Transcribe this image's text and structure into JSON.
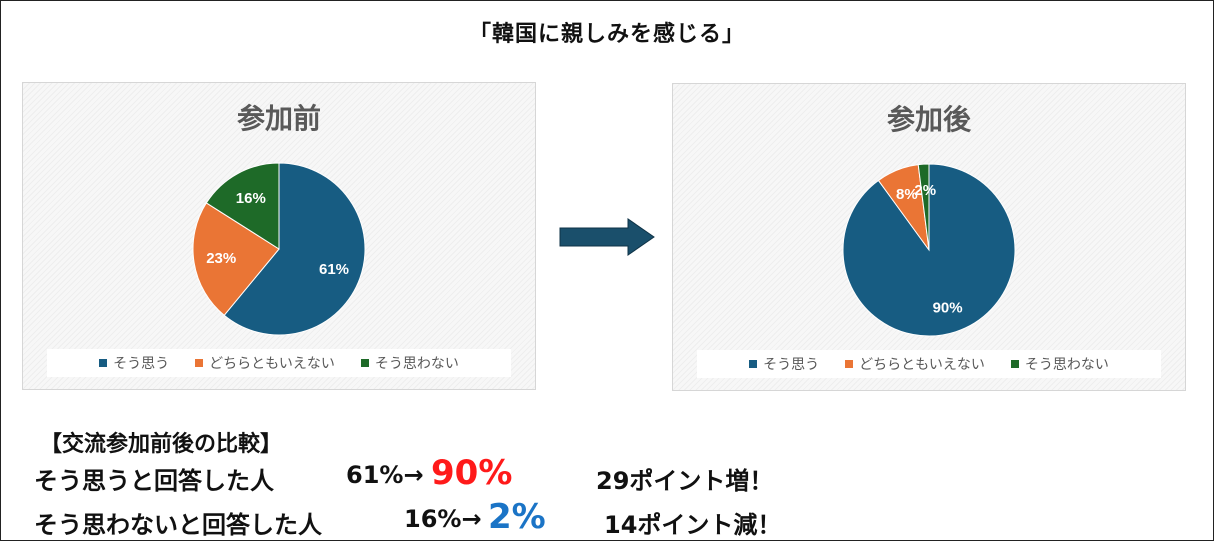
{
  "main_title": "「韓国に親しみを感じる」",
  "colors": {
    "agree": "#175C82",
    "neutral": "#EA7535",
    "disagree": "#1E6A28",
    "increase": "#FF1A1A",
    "decrease": "#1B74C6",
    "arrow": "#1A4F6B"
  },
  "chart_data": [
    {
      "type": "pie",
      "title": "参加前",
      "categories": [
        "そう思う",
        "どちらともいえない",
        "そう思わない"
      ],
      "values": [
        61,
        23,
        16
      ],
      "labels": [
        "61%",
        "23%",
        "16%"
      ],
      "legend": "bottom"
    },
    {
      "type": "pie",
      "title": "参加後",
      "categories": [
        "そう思う",
        "どちらともいえない",
        "そう思わない"
      ],
      "values": [
        90,
        8,
        2
      ],
      "labels": [
        "90%",
        "8%",
        "2%"
      ],
      "legend": "bottom"
    }
  ],
  "summary": {
    "title": "【交流参加前後の比較】",
    "row1": {
      "label": "そう思うと回答した人",
      "from": "61%→",
      "to": "90%",
      "change": "29ポイント増！"
    },
    "row2": {
      "label": "そう思わないと回答した人",
      "from": "16%→",
      "to": "2%",
      "change": "14ポイント減！"
    }
  }
}
